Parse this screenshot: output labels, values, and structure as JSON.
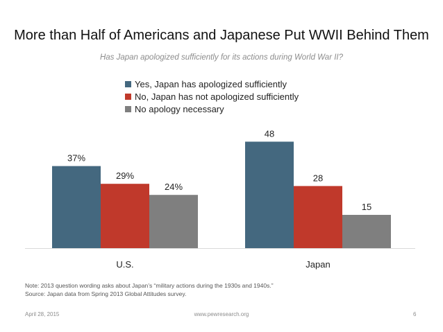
{
  "slide": {
    "title": "More than Half of Americans and Japanese Put WWII Behind Them",
    "subtitle": "Has Japan apologized sufficiently for its actions during World War II?"
  },
  "colors": {
    "yes": "#44687f",
    "no": "#c0392b",
    "none": "#7f7f7f",
    "baseline": "#d9d9d9"
  },
  "chart_data": {
    "type": "bar",
    "title": "Has Japan apologized sufficiently for its actions during World War II?",
    "categories": [
      "U.S.",
      "Japan"
    ],
    "series": [
      {
        "name": "Yes, Japan has apologized sufficiently",
        "values": [
          37,
          48
        ],
        "labels": [
          "37%",
          "48"
        ]
      },
      {
        "name": "No, Japan has not apologized sufficiently",
        "values": [
          29,
          28
        ],
        "labels": [
          "29%",
          "28"
        ]
      },
      {
        "name": "No apology necessary",
        "values": [
          24,
          15
        ],
        "labels": [
          "24%",
          "15"
        ]
      }
    ],
    "xlabel": "",
    "ylabel": "",
    "ylim": [
      0,
      55
    ],
    "grid": false,
    "legend": "top-center"
  },
  "notes": {
    "line1": "Note: 2013 question wording asks about Japan’s “military actions during the 1930s and 1940s.”",
    "line2": "Source: Japan data from Spring 2013 Global Attitudes survey."
  },
  "footer": {
    "date": "April 28, 2015",
    "url": "www.pewresearch.org",
    "page": "6"
  }
}
